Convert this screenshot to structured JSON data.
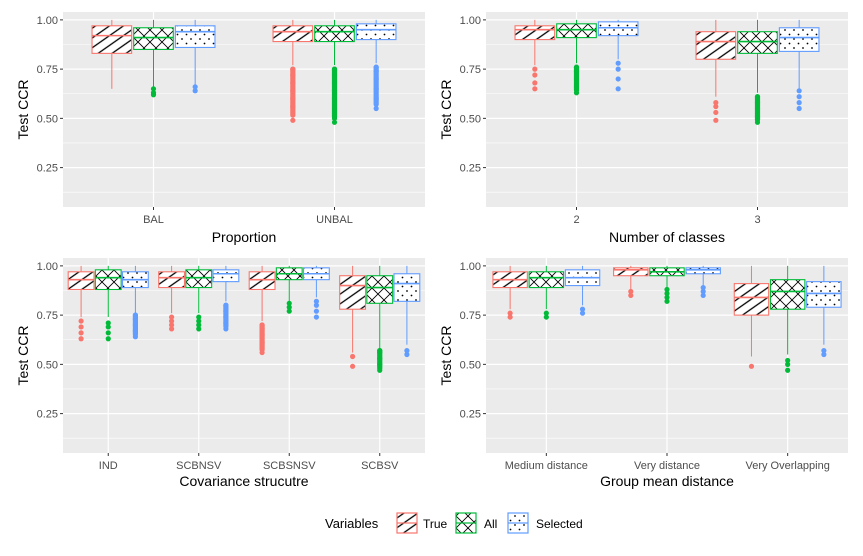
{
  "colors": {
    "true": "#F8766D",
    "all": "#00BA38",
    "selected": "#619CFF",
    "panel_bg": "#EBEBEB",
    "grid": "#FFFFFF",
    "axis_text": "#4D4D4D",
    "title_text": "#000000"
  },
  "legend": {
    "title": "Variables",
    "position": "bottom",
    "entries": [
      {
        "key": "true",
        "label": "True",
        "pattern": "stripe"
      },
      {
        "key": "all",
        "label": "All",
        "pattern": "crosshatch"
      },
      {
        "key": "selected",
        "label": "Selected",
        "pattern": "dots"
      }
    ]
  },
  "chart_data": [
    {
      "type": "boxplot",
      "xlabel": "Proportion",
      "ylabel": "Test CCR",
      "ylim": [
        0.05,
        1.04
      ],
      "yticks": [
        0.25,
        0.5,
        0.75,
        1.0
      ],
      "ytick_labels": [
        "0.25",
        "0.50",
        "0.75",
        "1.00"
      ],
      "grid": true,
      "categories": [
        "BAL",
        "UNBAL"
      ],
      "series": [
        {
          "key": "true",
          "boxes": [
            {
              "min": 0.65,
              "q1": 0.83,
              "median": 0.92,
              "q3": 0.97,
              "max": 1.0,
              "outliers": []
            },
            {
              "min": 0.77,
              "q1": 0.89,
              "median": 0.94,
              "q3": 0.97,
              "max": 1.0,
              "outliers": [
                0.49,
                0.56,
                0.6,
                0.64,
                0.68,
                0.72,
                0.75
              ]
            }
          ]
        },
        {
          "key": "all",
          "boxes": [
            {
              "min": 0.66,
              "q1": 0.85,
              "median": 0.91,
              "q3": 0.96,
              "max": 1.0,
              "outliers": [
                0.62,
                0.63,
                0.65
              ]
            },
            {
              "min": 0.77,
              "q1": 0.89,
              "median": 0.94,
              "q3": 0.97,
              "max": 1.0,
              "outliers": [
                0.48,
                0.5,
                0.55,
                0.6,
                0.64,
                0.68,
                0.72,
                0.75
              ]
            }
          ]
        },
        {
          "key": "selected",
          "boxes": [
            {
              "min": 0.67,
              "q1": 0.86,
              "median": 0.94,
              "q3": 0.97,
              "max": 1.0,
              "outliers": [
                0.64,
                0.66
              ]
            },
            {
              "min": 0.78,
              "q1": 0.9,
              "median": 0.95,
              "q3": 0.98,
              "max": 1.0,
              "outliers": [
                0.55,
                0.6,
                0.65,
                0.7,
                0.74,
                0.76
              ]
            }
          ]
        }
      ]
    },
    {
      "type": "boxplot",
      "xlabel": "Number of classes",
      "ylabel": "Test CCR",
      "ylim": [
        0.05,
        1.04
      ],
      "yticks": [
        0.25,
        0.5,
        0.75,
        1.0
      ],
      "ytick_labels": [
        "0.25",
        "0.50",
        "0.75",
        "1.00"
      ],
      "grid": true,
      "categories": [
        "2",
        "3"
      ],
      "series": [
        {
          "key": "true",
          "boxes": [
            {
              "min": 0.77,
              "q1": 0.9,
              "median": 0.95,
              "q3": 0.97,
              "max": 1.0,
              "outliers": [
                0.65,
                0.68,
                0.72,
                0.75
              ]
            },
            {
              "min": 0.61,
              "q1": 0.8,
              "median": 0.89,
              "q3": 0.94,
              "max": 1.0,
              "outliers": [
                0.49,
                0.53,
                0.56,
                0.58
              ]
            }
          ]
        },
        {
          "key": "all",
          "boxes": [
            {
              "min": 0.78,
              "q1": 0.91,
              "median": 0.95,
              "q3": 0.98,
              "max": 1.0,
              "outliers": [
                0.63,
                0.66,
                0.7,
                0.74,
                0.76
              ]
            },
            {
              "min": 0.63,
              "q1": 0.83,
              "median": 0.89,
              "q3": 0.94,
              "max": 1.0,
              "outliers": [
                0.48,
                0.51,
                0.55,
                0.58,
                0.61
              ]
            }
          ]
        },
        {
          "key": "selected",
          "boxes": [
            {
              "min": 0.8,
              "q1": 0.92,
              "median": 0.96,
              "q3": 0.99,
              "max": 1.0,
              "outliers": [
                0.65,
                0.7,
                0.75,
                0.78
              ]
            },
            {
              "min": 0.65,
              "q1": 0.84,
              "median": 0.91,
              "q3": 0.96,
              "max": 1.0,
              "outliers": [
                0.55,
                0.58,
                0.61,
                0.64
              ]
            }
          ]
        }
      ]
    },
    {
      "type": "boxplot",
      "xlabel": "Covariance strucutre",
      "ylabel": "Test CCR",
      "ylim": [
        0.05,
        1.04
      ],
      "yticks": [
        0.25,
        0.5,
        0.75,
        1.0
      ],
      "ytick_labels": [
        "0.25",
        "0.50",
        "0.75",
        "1.00"
      ],
      "grid": true,
      "categories": [
        "IND",
        "SCBNSV",
        "SCBSNSV",
        "SCBSV"
      ],
      "series": [
        {
          "key": "true",
          "boxes": [
            {
              "min": 0.74,
              "q1": 0.88,
              "median": 0.93,
              "q3": 0.97,
              "max": 1.0,
              "outliers": [
                0.63,
                0.66,
                0.69,
                0.72
              ]
            },
            {
              "min": 0.76,
              "q1": 0.89,
              "median": 0.94,
              "q3": 0.97,
              "max": 1.0,
              "outliers": [
                0.68,
                0.7,
                0.72,
                0.74
              ]
            },
            {
              "min": 0.72,
              "q1": 0.88,
              "median": 0.93,
              "q3": 0.97,
              "max": 1.0,
              "outliers": [
                0.56,
                0.61,
                0.65,
                0.68,
                0.7
              ]
            },
            {
              "min": 0.56,
              "q1": 0.78,
              "median": 0.9,
              "q3": 0.95,
              "max": 1.0,
              "outliers": [
                0.49,
                0.54
              ]
            }
          ]
        },
        {
          "key": "all",
          "boxes": [
            {
              "min": 0.74,
              "q1": 0.88,
              "median": 0.94,
              "q3": 0.98,
              "max": 1.0,
              "outliers": [
                0.63,
                0.66,
                0.69,
                0.71
              ]
            },
            {
              "min": 0.76,
              "q1": 0.89,
              "median": 0.94,
              "q3": 0.98,
              "max": 1.0,
              "outliers": [
                0.68,
                0.7,
                0.72,
                0.74
              ]
            },
            {
              "min": 0.82,
              "q1": 0.93,
              "median": 0.96,
              "q3": 0.99,
              "max": 1.0,
              "outliers": [
                0.77,
                0.79,
                0.81
              ]
            },
            {
              "min": 0.58,
              "q1": 0.81,
              "median": 0.89,
              "q3": 0.95,
              "max": 1.0,
              "outliers": [
                0.47,
                0.5,
                0.53,
                0.56,
                0.57
              ]
            }
          ]
        },
        {
          "key": "selected",
          "boxes": [
            {
              "min": 0.76,
              "q1": 0.89,
              "median": 0.93,
              "q3": 0.97,
              "max": 1.0,
              "outliers": [
                0.64,
                0.67,
                0.7,
                0.73,
                0.75
              ]
            },
            {
              "min": 0.82,
              "q1": 0.92,
              "median": 0.96,
              "q3": 0.98,
              "max": 1.0,
              "outliers": [
                0.68,
                0.71,
                0.74,
                0.77,
                0.8
              ]
            },
            {
              "min": 0.84,
              "q1": 0.93,
              "median": 0.96,
              "q3": 0.99,
              "max": 1.0,
              "outliers": [
                0.74,
                0.77,
                0.8,
                0.82
              ]
            },
            {
              "min": 0.6,
              "q1": 0.82,
              "median": 0.91,
              "q3": 0.96,
              "max": 1.0,
              "outliers": [
                0.55,
                0.57
              ]
            }
          ]
        }
      ]
    },
    {
      "type": "boxplot",
      "xlabel": "Group mean distance",
      "ylabel": "Test CCR",
      "ylim": [
        0.05,
        1.04
      ],
      "yticks": [
        0.25,
        0.5,
        0.75,
        1.0
      ],
      "ytick_labels": [
        "0.25",
        "0.50",
        "0.75",
        "1.00"
      ],
      "grid": true,
      "categories": [
        "Medium distance",
        "Very distance",
        "Very Overlapping"
      ],
      "series": [
        {
          "key": "true",
          "boxes": [
            {
              "min": 0.78,
              "q1": 0.89,
              "median": 0.93,
              "q3": 0.97,
              "max": 1.0,
              "outliers": [
                0.74,
                0.76
              ]
            },
            {
              "min": 0.88,
              "q1": 0.95,
              "median": 0.98,
              "q3": 0.99,
              "max": 1.0,
              "outliers": [
                0.85,
                0.87
              ]
            },
            {
              "min": 0.54,
              "q1": 0.75,
              "median": 0.84,
              "q3": 0.91,
              "max": 1.0,
              "outliers": [
                0.49
              ]
            }
          ]
        },
        {
          "key": "all",
          "boxes": [
            {
              "min": 0.78,
              "q1": 0.89,
              "median": 0.94,
              "q3": 0.97,
              "max": 1.0,
              "outliers": [
                0.74,
                0.76
              ]
            },
            {
              "min": 0.89,
              "q1": 0.95,
              "median": 0.97,
              "q3": 0.99,
              "max": 1.0,
              "outliers": [
                0.82,
                0.84,
                0.86,
                0.88
              ]
            },
            {
              "min": 0.55,
              "q1": 0.78,
              "median": 0.87,
              "q3": 0.93,
              "max": 1.0,
              "outliers": [
                0.47,
                0.5,
                0.52
              ]
            }
          ]
        },
        {
          "key": "selected",
          "boxes": [
            {
              "min": 0.8,
              "q1": 0.9,
              "median": 0.94,
              "q3": 0.98,
              "max": 1.0,
              "outliers": [
                0.76,
                0.78
              ]
            },
            {
              "min": 0.9,
              "q1": 0.96,
              "median": 0.98,
              "q3": 0.99,
              "max": 1.0,
              "outliers": [
                0.85,
                0.87,
                0.89
              ]
            },
            {
              "min": 0.6,
              "q1": 0.79,
              "median": 0.86,
              "q3": 0.92,
              "max": 1.0,
              "outliers": [
                0.55,
                0.57
              ]
            }
          ]
        }
      ]
    }
  ]
}
